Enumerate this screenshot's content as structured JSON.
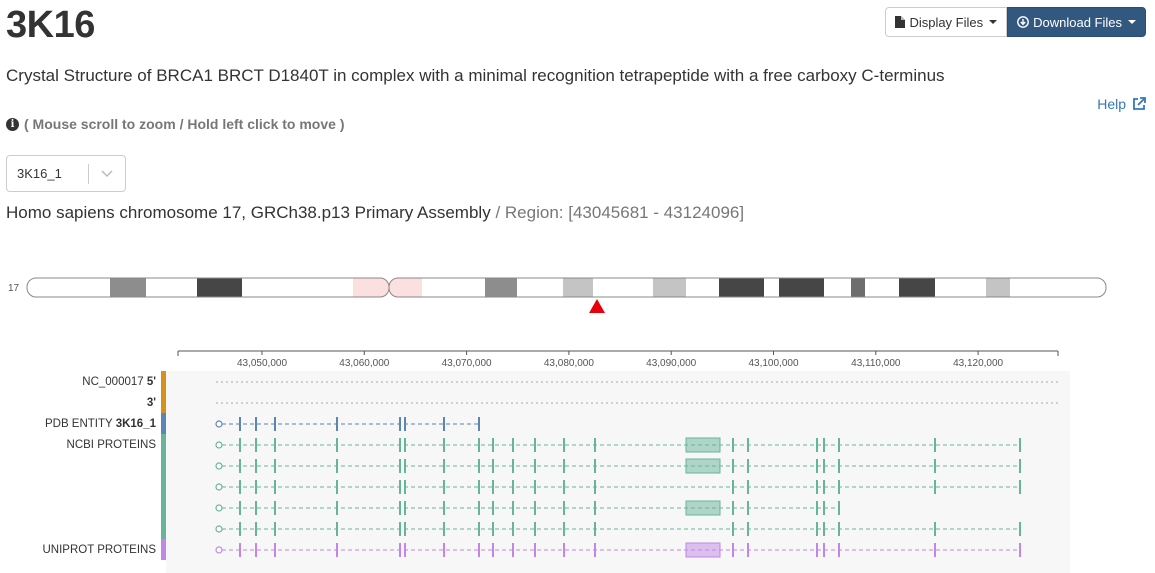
{
  "header": {
    "pdb_id": "3K16",
    "display_files_label": "Display Files",
    "download_files_label": "Download Files"
  },
  "title": "Crystal Structure of BRCA1 BRCT D1840T in complex with a minimal recognition tetrapeptide with a free carboxy C-terminus",
  "help_label": "Help",
  "instructions": "( Mouse scroll to zoom / Hold left click to move )",
  "entity_select": {
    "value": "3K16_1"
  },
  "assembly": {
    "name": "Homo sapiens chromosome 17, GRCh38.p13 Primary Assembly",
    "separator": "/",
    "region_label": "Region:",
    "region_value": "[43045681 - 43124096]"
  },
  "chromosome": {
    "label": "17",
    "marker_color": "#e8000b"
  },
  "axis": {
    "ticks": [
      "43,050,000",
      "43,060,000",
      "43,070,000",
      "43,080,000",
      "43,090,000",
      "43,100,000",
      "43,110,000",
      "43,120,000"
    ]
  },
  "tracks": [
    {
      "label_prefix": "NC_000017",
      "label_bold": "5'",
      "color": "#d6901e"
    },
    {
      "label_prefix": "",
      "label_bold": "3'",
      "color": "#d6901e"
    },
    {
      "label_prefix": "PDB ENTITY",
      "label_bold": "3K16_1",
      "color": "#5b86b4"
    },
    {
      "label_prefix": "NCBI PROTEINS",
      "label_bold": "",
      "color": "#68b49b"
    },
    {
      "label_prefix": "UNIPROT PROTEINS",
      "label_bold": "",
      "color": "#c286e8"
    }
  ],
  "colors": {
    "accent": "#325880",
    "link": "#337ab7",
    "pdb_entity": "#5b86b4",
    "ncbi": "#68b49b",
    "uniprot": "#c286e8",
    "nc_dots": "#d6901e"
  }
}
